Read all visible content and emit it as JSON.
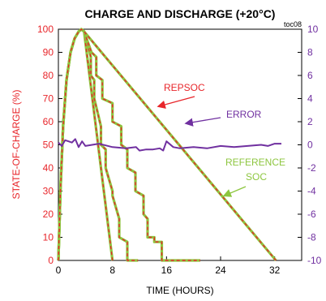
{
  "chart_data": {
    "type": "line",
    "title": "CHARGE AND DISCHARGE (+20°C)",
    "figure_code": "toc08",
    "xlabel": "TIME (HOURS)",
    "ylabel": "STATE-OF-CHARGE (%)",
    "y2label": "ERROR (%)",
    "xlim": [
      0,
      36
    ],
    "ylim": [
      0,
      100
    ],
    "y2lim": [
      -10,
      10
    ],
    "xticks": [
      0,
      8,
      16,
      24,
      32
    ],
    "yticks": [
      0,
      10,
      20,
      30,
      40,
      50,
      60,
      70,
      80,
      90,
      100
    ],
    "y2ticks": [
      -10,
      -8,
      -6,
      -4,
      -2,
      0,
      2,
      4,
      6,
      8,
      10
    ],
    "grid": false,
    "colors": {
      "repsoc": "#e8262b",
      "reference": "#8dc63f",
      "error": "#7030a0",
      "left_axis": "#e8262b",
      "right_axis": "#7030a0"
    },
    "annotations": [
      {
        "text": "REPSOC",
        "color": "#e8262b"
      },
      {
        "text": "ERROR",
        "color": "#7030a0"
      },
      {
        "text": "REFERENCE",
        "color": "#8dc63f"
      },
      {
        "text": "SOC",
        "color": "#8dc63f"
      }
    ],
    "series": [
      {
        "axis": "left",
        "x": [
          0,
          0.3,
          0.7,
          1.2,
          1.8,
          2.4,
          3.0,
          3.4,
          3.8,
          6.3,
          8.0
        ],
        "y": [
          0,
          30,
          58,
          78,
          90,
          96,
          99,
          100,
          99,
          40,
          0
        ]
      },
      {
        "axis": "left",
        "x": [
          0,
          0.3,
          0.7,
          1.2,
          1.8,
          2.4,
          3.0,
          3.4,
          3.8,
          4.8,
          4.8,
          5.3,
          5.3,
          6.3,
          6.3,
          7.0,
          7.0,
          8.0,
          8.0,
          9.0,
          9.0,
          10.2,
          10.2,
          11.8
        ],
        "y": [
          0,
          30,
          58,
          78,
          90,
          96,
          99,
          100,
          99,
          88,
          80,
          78,
          70,
          58,
          50,
          48,
          40,
          30,
          28,
          18,
          10,
          8,
          0,
          0
        ]
      },
      {
        "axis": "left",
        "x": [
          0,
          0.3,
          0.7,
          1.2,
          1.8,
          2.4,
          3.0,
          3.4,
          3.8,
          4.9,
          5.6,
          5.6,
          6.5,
          6.5,
          8.0,
          8.0,
          9.3,
          9.3,
          10.2,
          10.2,
          11.4,
          11.4,
          12.6,
          12.6,
          13.2,
          13.2,
          14.2,
          14.2,
          15.3,
          15.3,
          16.0,
          16.0,
          17.0,
          17.0,
          18.5,
          18.5,
          19.5,
          19.5,
          21.0
        ],
        "y": [
          0,
          30,
          58,
          78,
          90,
          96,
          99,
          100,
          99,
          90,
          88,
          80,
          78,
          70,
          68,
          60,
          58,
          50,
          48,
          40,
          38,
          30,
          28,
          20,
          18,
          10,
          10,
          8,
          8,
          0,
          0,
          0,
          0,
          0,
          0,
          0,
          0,
          0,
          0
        ]
      },
      {
        "axis": "left",
        "x": [
          0,
          0.3,
          0.7,
          1.2,
          1.8,
          2.4,
          3.0,
          3.4,
          3.8,
          32.2
        ],
        "y": [
          0,
          30,
          58,
          78,
          90,
          96,
          99,
          100,
          99,
          0
        ]
      },
      {
        "axis": "right",
        "x": [
          0,
          0.5,
          1.0,
          1.5,
          2.0,
          2.5,
          3.0,
          3.5,
          4.0,
          6.0,
          8.0,
          10.0,
          11.5,
          12.0,
          13.0,
          14.0,
          15.0,
          15.5,
          16.0,
          17.0,
          18.0,
          20.0,
          22.0,
          24.0,
          26.0,
          28.0,
          30.0,
          31.0,
          32.0,
          33.0
        ],
        "y": [
          0.2,
          -0.1,
          0.4,
          0.3,
          0.2,
          0.5,
          -0.2,
          0.3,
          -0.1,
          0.1,
          -0.2,
          -0.3,
          -0.2,
          -0.5,
          -0.4,
          -0.4,
          -0.3,
          -0.5,
          0.3,
          -0.2,
          -0.3,
          -0.2,
          -0.3,
          -0.1,
          -0.2,
          -0.1,
          0.0,
          -0.1,
          0.1,
          0.1
        ]
      }
    ]
  }
}
